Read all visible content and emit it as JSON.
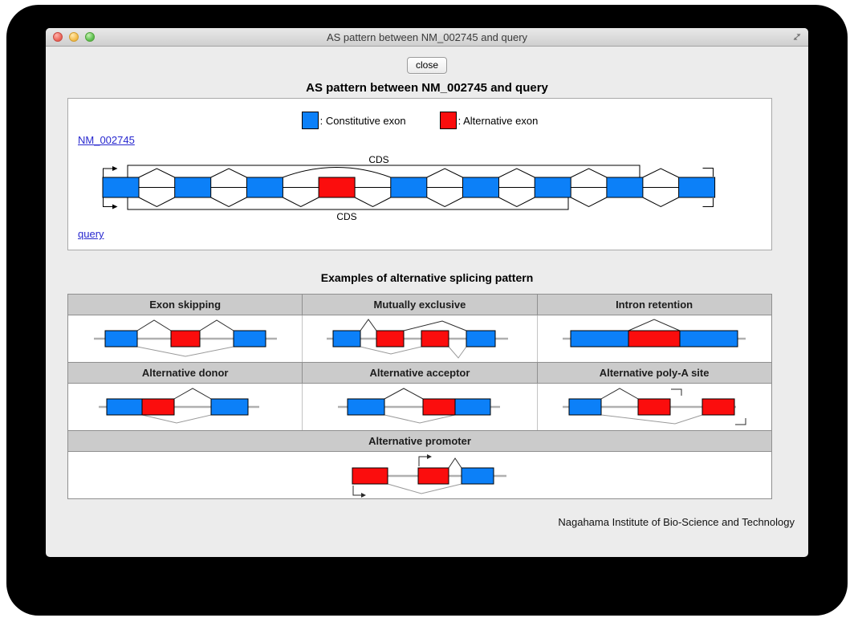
{
  "window": {
    "title": "AS pattern between NM_002745 and query",
    "controls": {
      "close": "close-window",
      "minimize": "minimize-window",
      "zoom": "zoom-window"
    }
  },
  "toolbar": {
    "close_label": "close"
  },
  "page": {
    "title": "AS pattern between NM_002745 and query",
    "footer": "Nagahama Institute of Bio-Science and Technology"
  },
  "legend": {
    "constitutive": {
      "label": ": Constitutive exon",
      "color": "#0c80f8"
    },
    "alternative": {
      "label": ": Alternative exon",
      "color": "#fb0d0d"
    }
  },
  "main_diagram": {
    "transcripts": [
      {
        "id": "NM_002745",
        "label": "NM_002745"
      },
      {
        "id": "query",
        "label": "query"
      }
    ],
    "cds_label": "CDS",
    "exons": [
      "constitutive",
      "constitutive",
      "constitutive",
      "alternative",
      "constitutive",
      "constitutive",
      "constitutive",
      "constitutive",
      "constitutive"
    ],
    "top_transcript_skips_exon_index": 3,
    "pattern_between_transcripts": "exon skipping of alternative exon 4"
  },
  "examples": {
    "heading": "Examples of alternative splicing pattern",
    "patterns": [
      {
        "label": "Exon skipping",
        "exons": [
          "constitutive",
          "alternative",
          "constitutive"
        ]
      },
      {
        "label": "Mutually exclusive",
        "exons": [
          "constitutive",
          "alternative",
          "alternative",
          "constitutive"
        ]
      },
      {
        "label": "Intron retention",
        "exons": [
          "constitutive",
          "alternative",
          "constitutive"
        ]
      },
      {
        "label": "Alternative donor",
        "exons": [
          "constitutive",
          "alternative",
          "constitutive"
        ]
      },
      {
        "label": "Alternative acceptor",
        "exons": [
          "constitutive",
          "alternative",
          "constitutive"
        ]
      },
      {
        "label": "Alternative poly-A site",
        "exons": [
          "constitutive",
          "alternative",
          "alternative"
        ]
      },
      {
        "label": "Alternative promoter",
        "exons": [
          "alternative",
          "alternative",
          "constitutive"
        ]
      }
    ]
  }
}
